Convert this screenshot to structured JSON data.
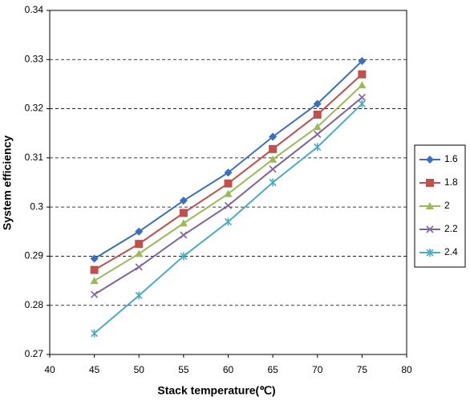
{
  "chart_data": {
    "type": "line",
    "x_label": "Stack temperature(℃)",
    "y_label": "System efficiency",
    "x": [
      45,
      50,
      55,
      60,
      65,
      70,
      75
    ],
    "series": [
      {
        "name": "1.6",
        "color": "#3d6fc0",
        "marker": "diamond",
        "values": [
          0.2895,
          0.295,
          0.3013,
          0.307,
          0.3143,
          0.321,
          0.3297
        ]
      },
      {
        "name": "1.8",
        "color": "#c0504d",
        "marker": "square",
        "values": [
          0.2872,
          0.2925,
          0.2988,
          0.3048,
          0.3118,
          0.3188,
          0.327
        ]
      },
      {
        "name": "2",
        "color": "#9bbb59",
        "marker": "triangle",
        "values": [
          0.285,
          0.2905,
          0.2967,
          0.3027,
          0.3097,
          0.3163,
          0.3248
        ]
      },
      {
        "name": "2.2",
        "color": "#8064a2",
        "marker": "x",
        "values": [
          0.2822,
          0.2878,
          0.2943,
          0.3003,
          0.3077,
          0.3148,
          0.3223
        ]
      },
      {
        "name": "2.4",
        "color": "#4bacc6",
        "marker": "star",
        "values": [
          0.2743,
          0.282,
          0.29,
          0.297,
          0.305,
          0.3122,
          0.321
        ]
      }
    ],
    "xlim": [
      40,
      80
    ],
    "xticks": [
      40,
      45,
      50,
      55,
      60,
      65,
      70,
      75,
      80
    ],
    "ylim": [
      0.27,
      0.34
    ],
    "yticks": [
      0.27,
      0.28,
      0.29,
      0.3,
      0.31,
      0.32,
      0.33,
      0.34
    ],
    "grid": true,
    "legend": "right"
  }
}
